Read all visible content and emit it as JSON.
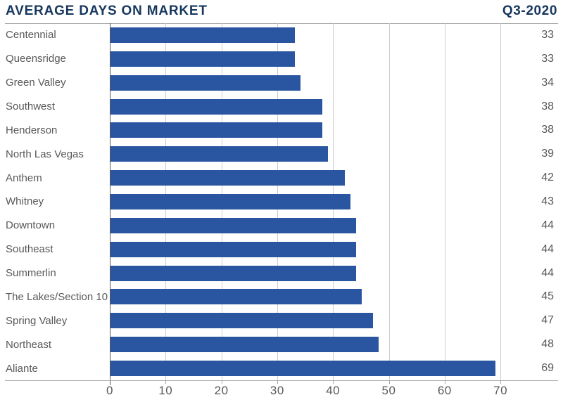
{
  "header": {
    "title": "AVERAGE DAYS ON MARKET",
    "period": "Q3-2020"
  },
  "chart_data": {
    "type": "bar",
    "orientation": "horizontal",
    "title": "AVERAGE DAYS ON MARKET",
    "subtitle": "Q3-2020",
    "categories": [
      "Centennial",
      "Queensridge",
      "Green Valley",
      "Southwest",
      "Henderson",
      "North Las Vegas",
      "Anthem",
      "Whitney",
      "Downtown",
      "Southeast",
      "Summerlin",
      "The Lakes/Section 10",
      "Spring Valley",
      "Northeast",
      "Aliante"
    ],
    "values": [
      33,
      33,
      34,
      38,
      38,
      39,
      42,
      43,
      44,
      44,
      44,
      45,
      47,
      48,
      69
    ],
    "x_ticks": [
      0,
      10,
      20,
      30,
      40,
      50,
      60,
      70
    ],
    "xlim": [
      0,
      80
    ],
    "grid": true,
    "legend": false,
    "value_labels_position": "right-edge",
    "colors": {
      "bar": "#2A55A0",
      "title": "#17375E",
      "category_label": "#58595B",
      "value_label": "#58595B",
      "tick_label": "#58595B",
      "gridline": "#CDCDCD",
      "frame_line": "#A9A9A9",
      "zero_axis": "#595959",
      "background": "#FFFFFF"
    }
  }
}
